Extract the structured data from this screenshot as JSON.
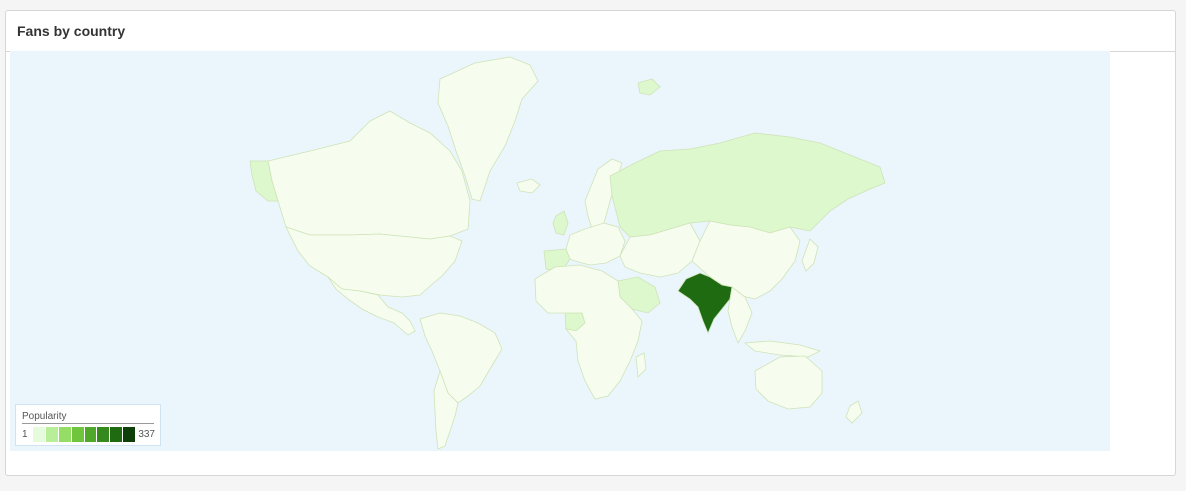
{
  "panel": {
    "title": "Fans by country"
  },
  "map": {
    "ocean_color": "#eaf5fc",
    "land_color": "#f6fdee",
    "border_color": "#cfe3b8",
    "countries": [
      {
        "name": "India",
        "value": 337,
        "color": "#1e6b12"
      },
      {
        "name": "Russia",
        "value": 1,
        "color": "#dcf8cc"
      },
      {
        "name": "Saudi Arabia",
        "value": 1,
        "color": "#dcf8cc"
      },
      {
        "name": "Nigeria",
        "value": 1,
        "color": "#dcf8cc"
      },
      {
        "name": "Spain",
        "value": 1,
        "color": "#dcf8cc"
      },
      {
        "name": "United Kingdom",
        "value": 1,
        "color": "#dcf8cc"
      },
      {
        "name": "Alaska",
        "value": 1,
        "color": "#dcf8cc"
      },
      {
        "name": "Svalbard",
        "value": 1,
        "color": "#dcf8cc"
      }
    ]
  },
  "legend": {
    "title": "Popularity",
    "min": "1",
    "max": "337",
    "swatches": [
      "#e6fadc",
      "#b9ee99",
      "#95de66",
      "#6fc63d",
      "#4fa82a",
      "#35891d",
      "#1f6b12",
      "#0f3f08"
    ]
  }
}
